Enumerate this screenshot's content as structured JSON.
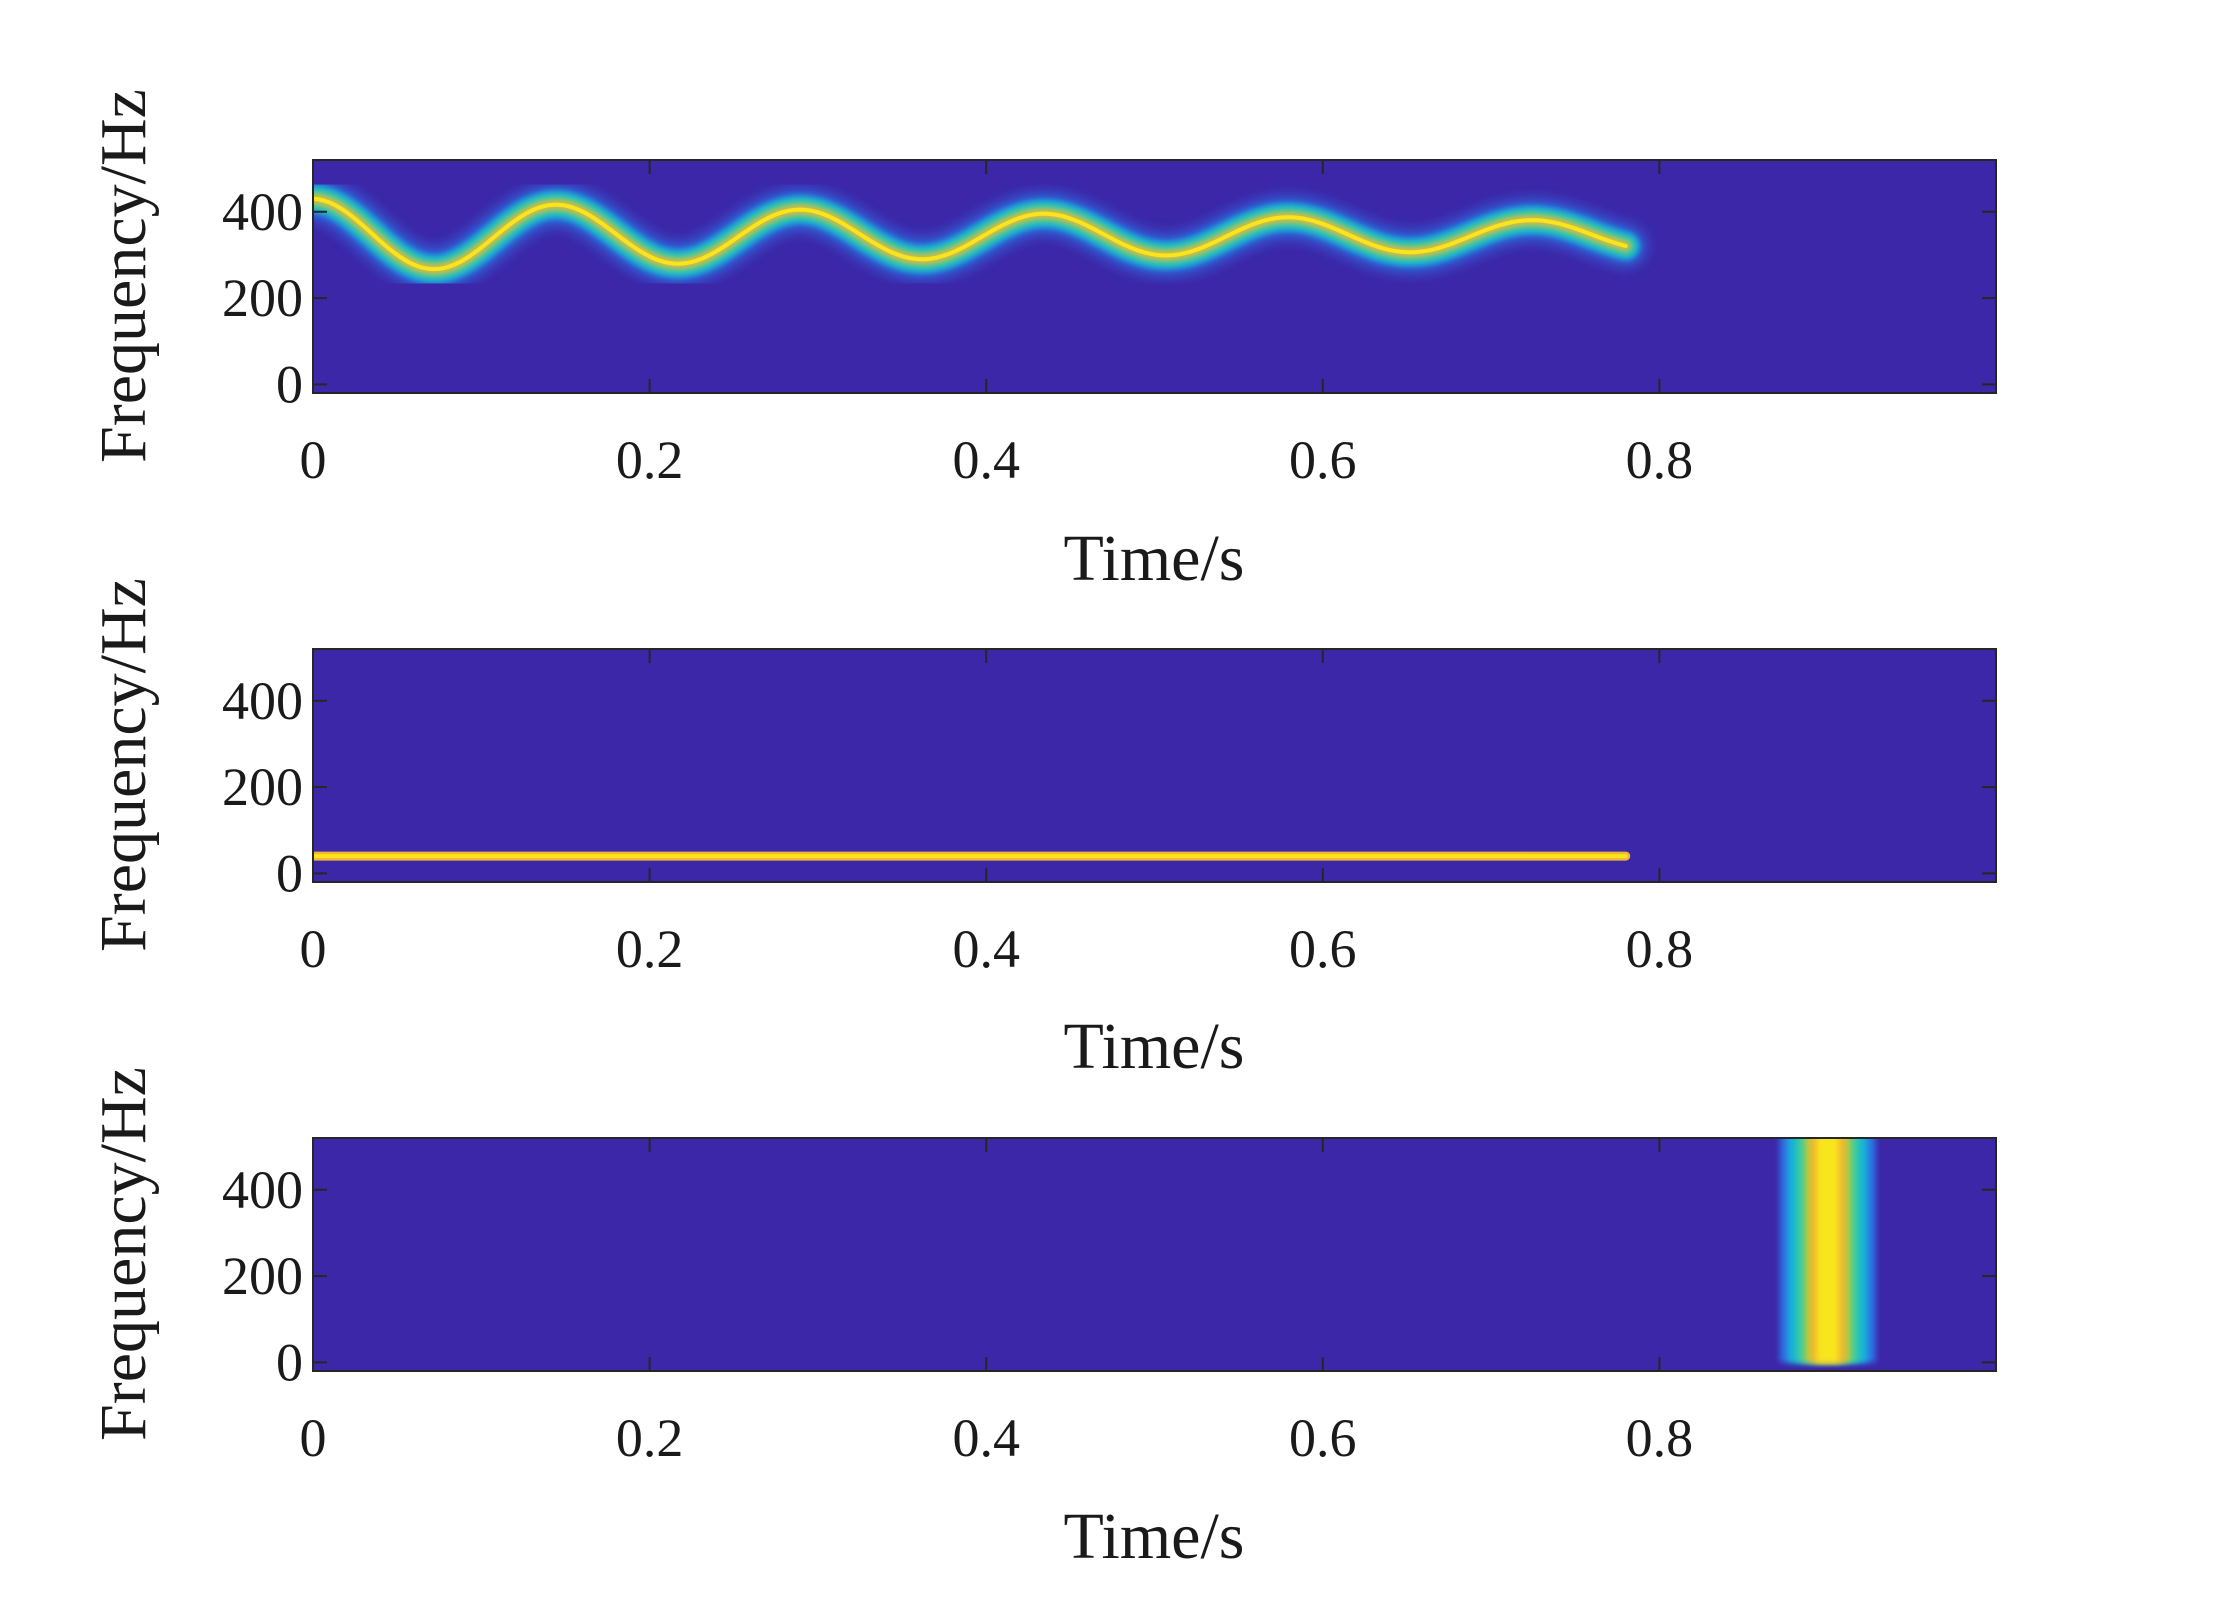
{
  "colors": {
    "background": "#3c27a8",
    "colormap": [
      "#3c27a8",
      "#2f6fe4",
      "#16b4d6",
      "#3fcd9c",
      "#b9c93a",
      "#f2b632",
      "#f8e51d"
    ]
  },
  "chart_data": [
    {
      "type": "heatmap",
      "description": "Time-frequency ridge oscillating around ~350 Hz with decaying amplitude, ending near 0.8 s",
      "xlabel": "Time/s",
      "ylabel": "Frequency/Hz",
      "xlim": [
        0,
        1.0
      ],
      "ylim": [
        -20,
        520
      ],
      "xticks": [
        0,
        0.2,
        0.4,
        0.6,
        0.8
      ],
      "xtick_labels": [
        "0",
        "0.2",
        "0.4",
        "0.6",
        "0.8"
      ],
      "yticks": [
        0,
        200,
        400
      ],
      "ytick_labels": [
        "0",
        "200",
        "400"
      ],
      "ridge": {
        "kind": "sinusoid",
        "t_start": 0.0,
        "t_end": 0.78,
        "center_hz": 345,
        "amplitude_start_hz": 85,
        "amplitude_decay": 1.2,
        "period_s": 0.145
      }
    },
    {
      "type": "heatmap",
      "description": "Constant-frequency ridge at ~40 Hz from 0 to ~0.78 s",
      "xlabel": "Time/s",
      "ylabel": "Frequency/Hz",
      "xlim": [
        0,
        1.0
      ],
      "ylim": [
        -20,
        520
      ],
      "xticks": [
        0,
        0.2,
        0.4,
        0.6,
        0.8
      ],
      "xtick_labels": [
        "0",
        "0.2",
        "0.4",
        "0.6",
        "0.8"
      ],
      "yticks": [
        0,
        200,
        400
      ],
      "ytick_labels": [
        "0",
        "200",
        "400"
      ],
      "ridge": {
        "kind": "constant",
        "t_start": 0.0,
        "t_end": 0.78,
        "frequency_hz": 40
      }
    },
    {
      "type": "heatmap",
      "description": "Impulse at ~0.9 s spanning all frequencies 0 to 520 Hz",
      "xlabel": "Time/s",
      "ylabel": "Frequency/Hz",
      "xlim": [
        0,
        1.0
      ],
      "ylim": [
        -20,
        520
      ],
      "xticks": [
        0,
        0.2,
        0.4,
        0.6,
        0.8
      ],
      "xtick_labels": [
        "0",
        "0.2",
        "0.4",
        "0.6",
        "0.8"
      ],
      "yticks": [
        0,
        200,
        400
      ],
      "ytick_labels": [
        "0",
        "200",
        "400"
      ],
      "ridge": {
        "kind": "impulse",
        "time_s": 0.9,
        "f_start": 0,
        "f_end": 520
      }
    }
  ]
}
